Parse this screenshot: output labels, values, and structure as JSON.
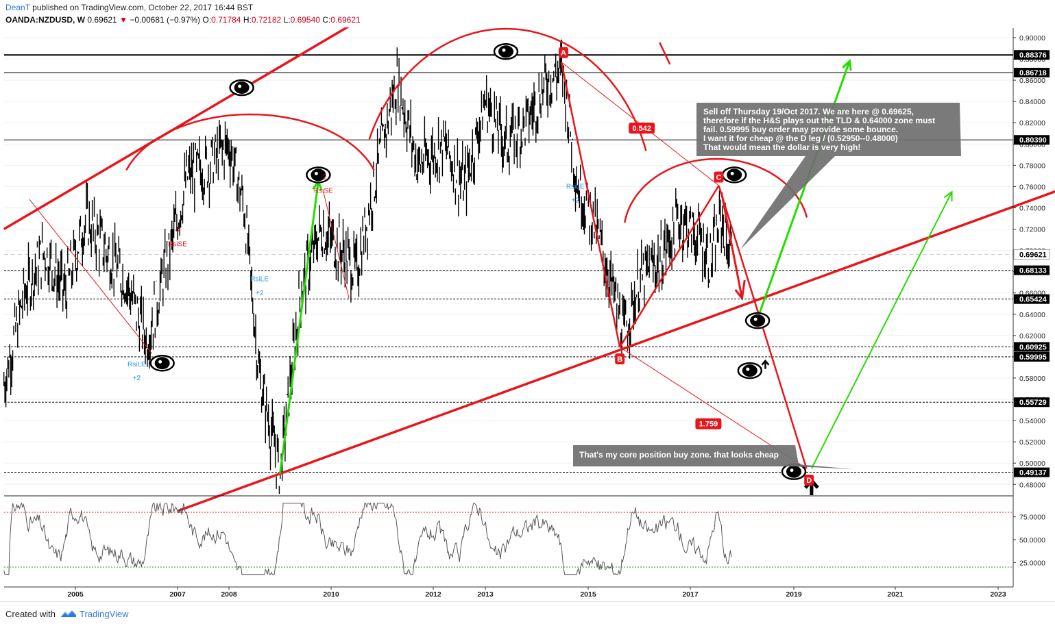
{
  "header": {
    "author": "DeanT",
    "published": "published on TradingView.com, October 22, 2017 16:44 BST",
    "symbol": "OANDA:NZDUSD, W",
    "last": "0.69621",
    "change_arrow": "▼",
    "change": "−0.00681 (−0.97%)",
    "o_label": "O:",
    "o_value": "0.71784",
    "h_label": "H:",
    "h_value": "0.72182",
    "l_label": "L:",
    "l_value": "0.69540",
    "c_label": "C:",
    "c_value": "0.69621"
  },
  "footer": {
    "made_with": "Created with",
    "brand": "TradingView"
  },
  "colors": {
    "trend": "#e8151b",
    "up_arrow": "#22dd00",
    "candle": "#000000",
    "rsi": "#555555",
    "label_bg": "#e8151b",
    "note_bg": "#6f6f6f",
    "price_tag": "#000000",
    "indicator_blue": "#2196f3"
  },
  "chart_data": [
    {
      "type": "candlestick",
      "symbol": "OANDA:NZDUSD",
      "interval": "W",
      "ylim": [
        0.465,
        0.91
      ],
      "y_ticks": [
        "0.90000",
        "0.88000",
        "0.86000",
        "0.84000",
        "0.82000",
        "0.80000",
        "0.78000",
        "0.76000",
        "0.74000",
        "0.72000",
        "0.70000",
        "0.68000",
        "0.66000",
        "0.64000",
        "0.62000",
        "0.60000",
        "0.58000",
        "0.56000",
        "0.54000",
        "0.52000",
        "0.50000",
        "0.48000"
      ],
      "x_ticks": [
        "2005",
        "2007",
        "2008",
        "2010",
        "2012",
        "2013",
        "2015",
        "2017",
        "2019",
        "2021",
        "2023"
      ],
      "price_path": [
        [
          2003.6,
          0.575
        ],
        [
          2004.0,
          0.66
        ],
        [
          2004.4,
          0.7
        ],
        [
          2004.8,
          0.66
        ],
        [
          2005.2,
          0.73
        ],
        [
          2005.6,
          0.7
        ],
        [
          2006.0,
          0.67
        ],
        [
          2006.4,
          0.615
        ],
        [
          2006.8,
          0.69
        ],
        [
          2007.2,
          0.77
        ],
        [
          2007.6,
          0.78
        ],
        [
          2008.0,
          0.8
        ],
        [
          2008.3,
          0.74
        ],
        [
          2008.6,
          0.58
        ],
        [
          2009.0,
          0.49
        ],
        [
          2009.4,
          0.66
        ],
        [
          2009.8,
          0.72
        ],
        [
          2010.2,
          0.7
        ],
        [
          2010.5,
          0.68
        ],
        [
          2011.0,
          0.8
        ],
        [
          2011.3,
          0.86
        ],
        [
          2011.7,
          0.78
        ],
        [
          2012.2,
          0.8
        ],
        [
          2012.6,
          0.76
        ],
        [
          2013.0,
          0.84
        ],
        [
          2013.4,
          0.8
        ],
        [
          2013.8,
          0.82
        ],
        [
          2014.2,
          0.86
        ],
        [
          2014.5,
          0.87
        ],
        [
          2014.8,
          0.76
        ],
        [
          2015.1,
          0.73
        ],
        [
          2015.5,
          0.66
        ],
        [
          2015.7,
          0.62
        ],
        [
          2016.0,
          0.67
        ],
        [
          2016.4,
          0.69
        ],
        [
          2016.8,
          0.73
        ],
        [
          2017.2,
          0.71
        ],
        [
          2017.4,
          0.69
        ],
        [
          2017.6,
          0.73
        ],
        [
          2017.75,
          0.7
        ],
        [
          2017.8,
          0.6962
        ]
      ],
      "horizontal_levels": [
        "0.88376",
        "0.86718",
        "0.80390",
        "0.69621",
        "0.68133",
        "0.65424",
        "0.60925",
        "0.59995",
        "0.55729",
        "0.49137"
      ],
      "last_price": "0.69621",
      "pattern_labels": [
        "A",
        "B",
        "C",
        "D"
      ],
      "ratio_labels": [
        "0.542",
        "1.759"
      ],
      "indicator_labels": [
        {
          "text": "-2",
          "color": "red"
        },
        {
          "text": "RsiSE",
          "color": "red"
        },
        {
          "text": "-2",
          "color": "red"
        },
        {
          "text": "RsiSE",
          "color": "red"
        },
        {
          "text": "RsiLE",
          "color": "blue"
        },
        {
          "text": "+2",
          "color": "blue"
        },
        {
          "text": "RsiLE",
          "color": "blue"
        },
        {
          "text": "+2",
          "color": "blue"
        },
        {
          "text": "RsiLE",
          "color": "blue"
        },
        {
          "text": "+2",
          "color": "blue"
        }
      ],
      "annotations": [
        "Sell off Thursday 19/Oct 2017. We are here @ 0.69625,",
        "therefore if the H&S plays out the TLD & 0.64000 zone must",
        "fail. 0.59995 buy order may provide some bounce.",
        " I want it for cheap @ the D leg / (0.52950--0.48000)",
        "That would mean the dollar is very high!"
      ],
      "annotation2": "That's my core position buy zone. that looks cheap"
    },
    {
      "type": "line",
      "name": "RSI",
      "ylim": [
        5,
        95
      ],
      "y_ticks": [
        "75.0000",
        "50.0000",
        "25.0000"
      ],
      "levels": [
        80,
        20
      ]
    }
  ]
}
